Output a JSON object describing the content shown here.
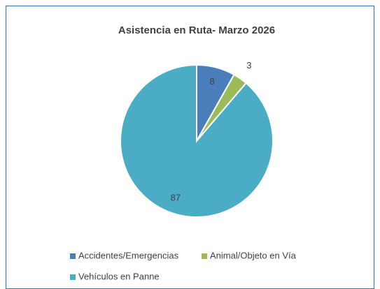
{
  "chart_data": {
    "type": "pie",
    "title": "Asistencia en Ruta- Marzo 2026",
    "categories": [
      "Accidentes/Emergencias",
      "Animal/Objeto en Vía",
      "Vehículos en Panne"
    ],
    "values": [
      8,
      3,
      87
    ],
    "colors": [
      "#4a7ebb",
      "#9bbb59",
      "#4bacc6"
    ],
    "legend": "bottom"
  }
}
